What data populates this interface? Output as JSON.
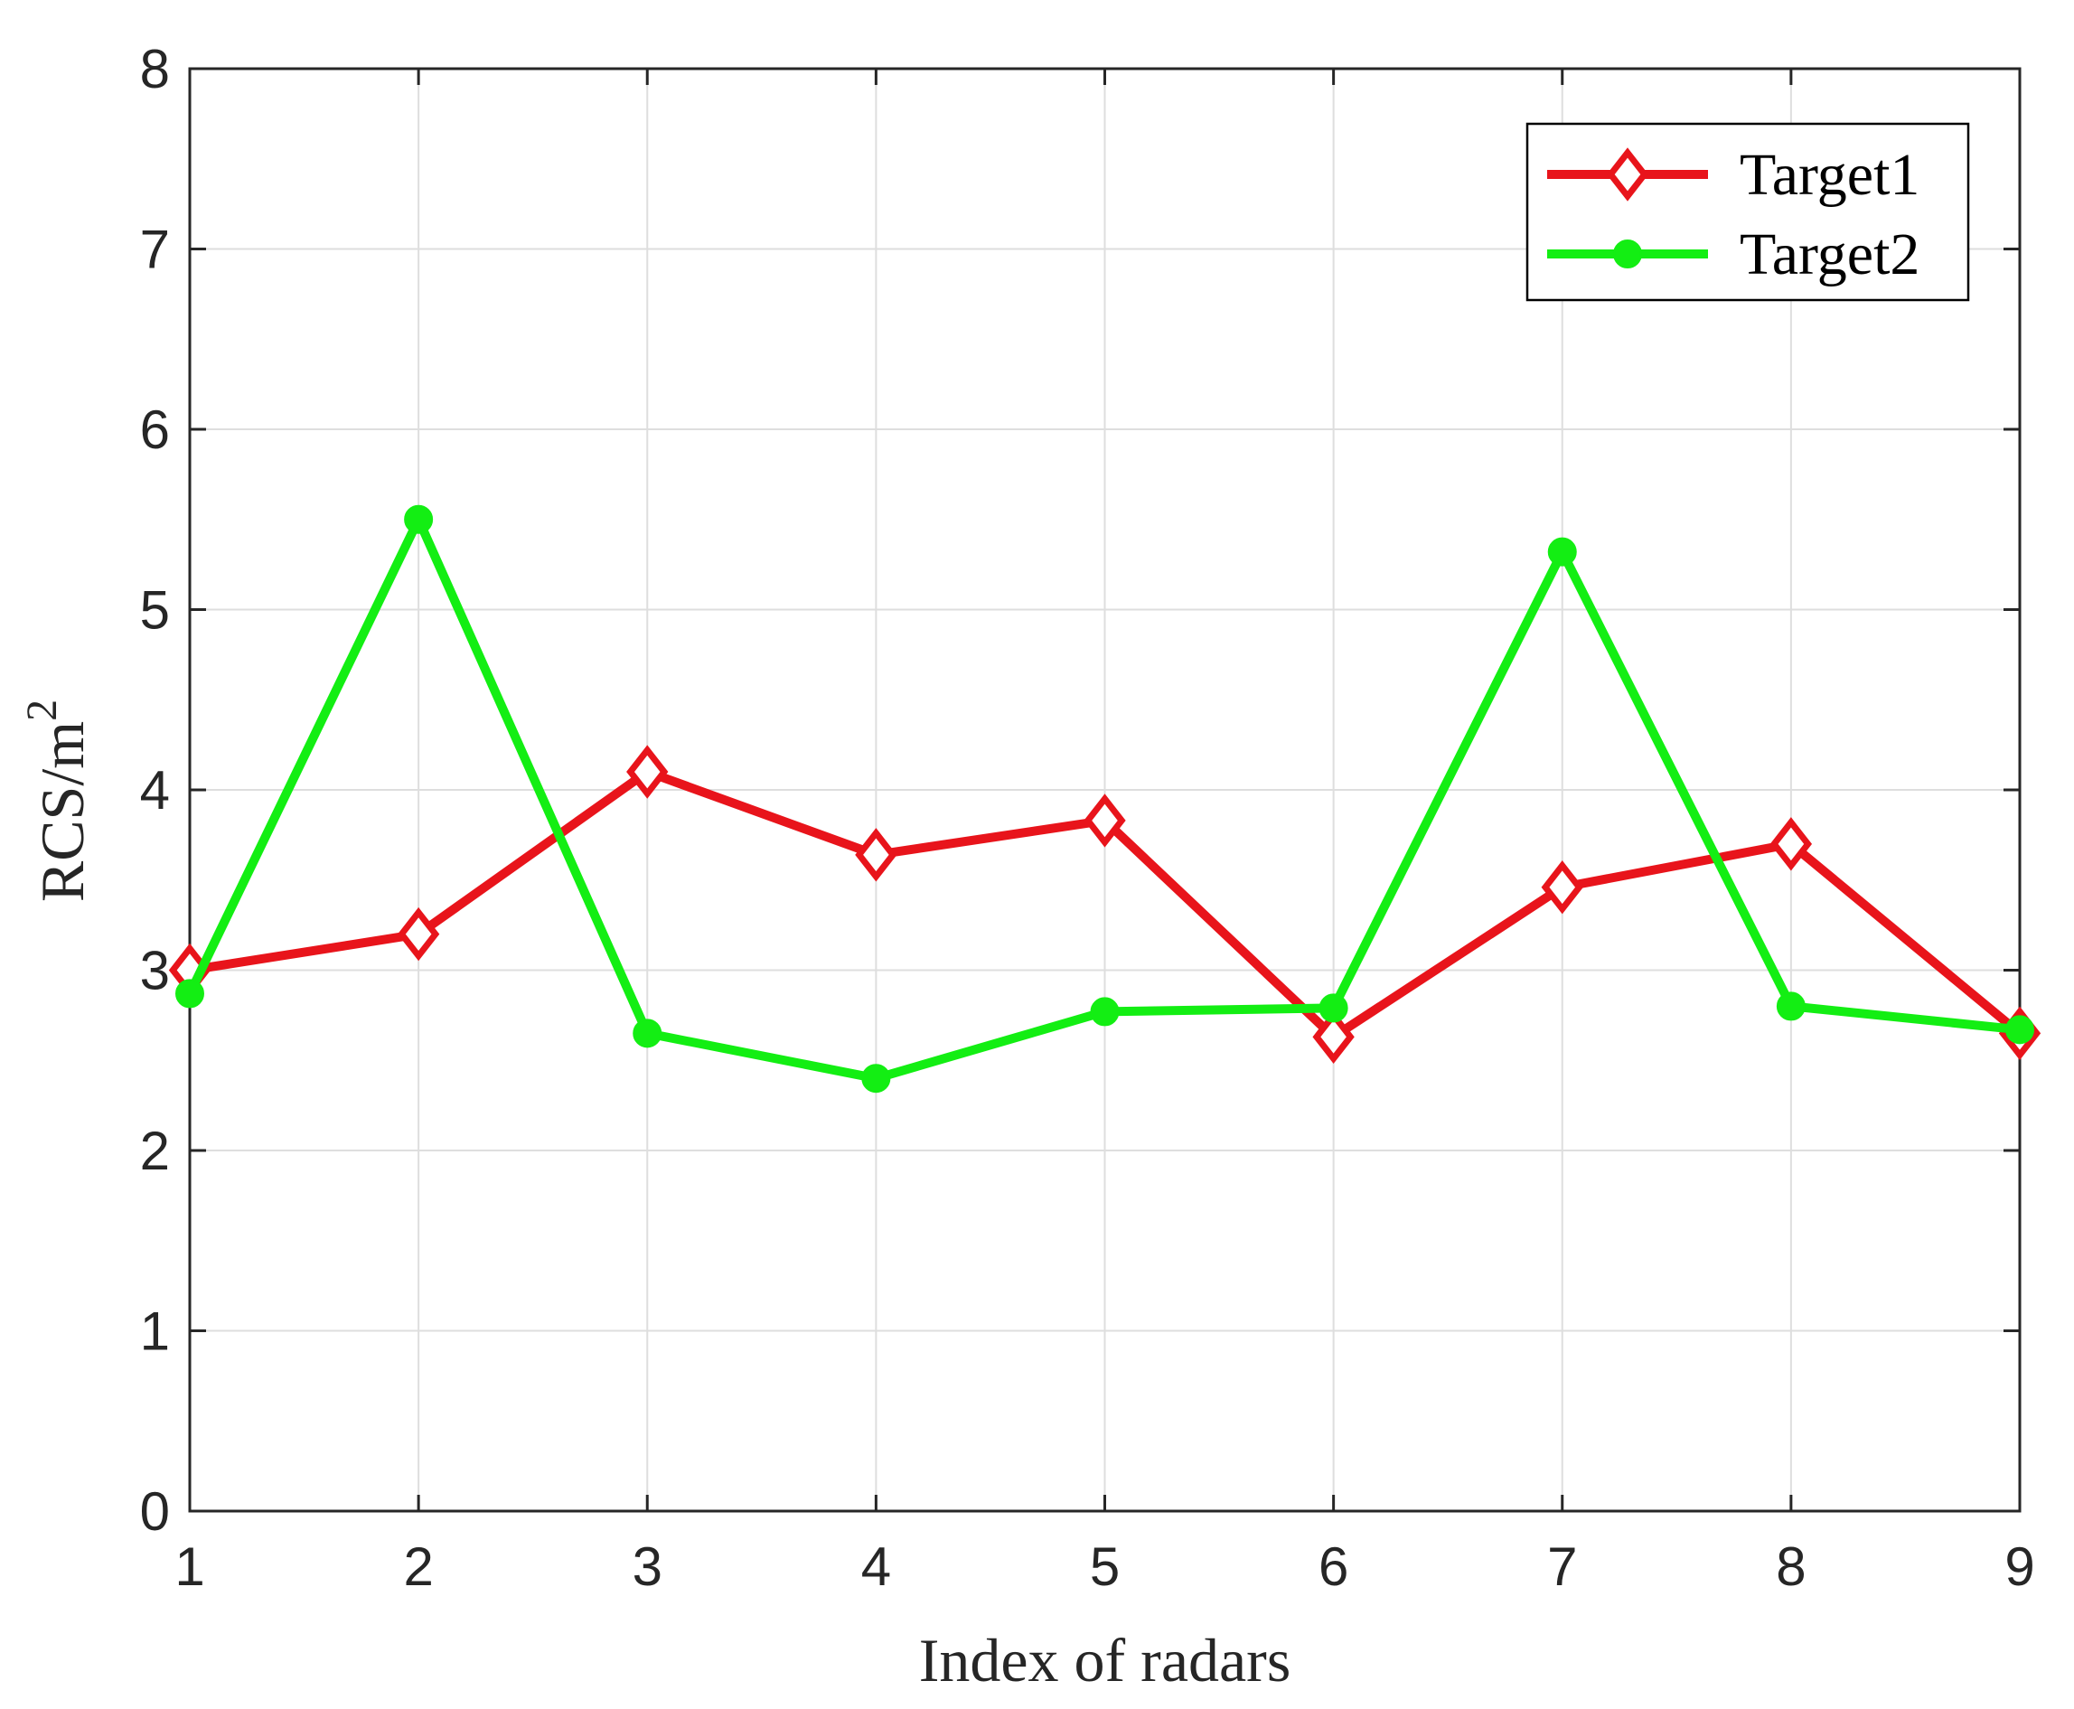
{
  "chart_data": {
    "type": "line",
    "title": "",
    "xlabel": "Index of radars",
    "ylabel": {
      "base": "RCS/m",
      "superscript": "2"
    },
    "xlim": [
      1,
      9
    ],
    "ylim": [
      0,
      8
    ],
    "xticks": [
      "1",
      "2",
      "3",
      "4",
      "5",
      "6",
      "7",
      "8",
      "9"
    ],
    "yticks": [
      "0",
      "1",
      "2",
      "3",
      "4",
      "5",
      "6",
      "7",
      "8"
    ],
    "grid": true,
    "legend_position": "top-right",
    "x": [
      1,
      2,
      3,
      4,
      5,
      6,
      7,
      8,
      9
    ],
    "series": [
      {
        "name": "Target1",
        "color": "#e8141b",
        "marker": "diamond",
        "values": [
          3.0,
          3.2,
          4.1,
          3.64,
          3.83,
          2.63,
          3.46,
          3.7,
          2.65
        ]
      },
      {
        "name": "Target2",
        "color": "#13ee13",
        "marker": "circle",
        "values": [
          2.87,
          5.5,
          2.65,
          2.4,
          2.77,
          2.79,
          5.32,
          2.8,
          2.67
        ]
      }
    ]
  }
}
